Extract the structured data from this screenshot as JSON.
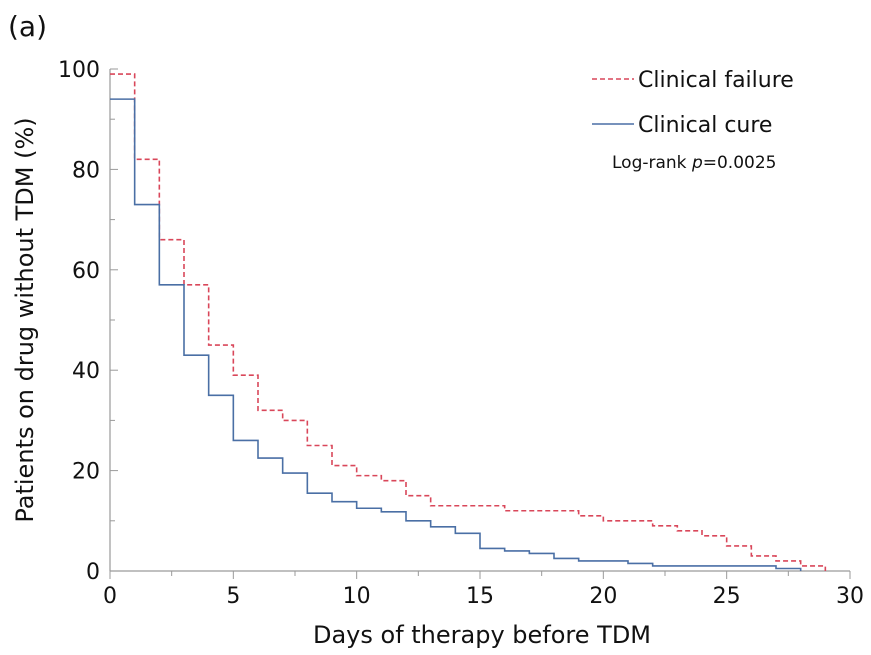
{
  "panel_label": "(a)",
  "chart_data": {
    "type": "line",
    "step": true,
    "xlabel": "Days of therapy before TDM",
    "ylabel": "Patients on drug without TDM (%)",
    "xlim": [
      0,
      30
    ],
    "ylim": [
      0,
      100
    ],
    "x_ticks": [
      0,
      5,
      10,
      15,
      20,
      25,
      30
    ],
    "y_ticks": [
      0,
      20,
      40,
      60,
      80,
      100
    ],
    "grid": false,
    "legend_position": "top-right",
    "annotation": {
      "prefix": "Log-rank ",
      "p_symbol": "p",
      "suffix": "=0.0025"
    },
    "series": [
      {
        "name": "Clinical failure",
        "color": "#d9475a",
        "line_style": "dashed",
        "x": [
          0,
          1,
          2,
          3,
          4,
          5,
          6,
          7,
          8,
          9,
          10,
          11,
          12,
          13,
          14,
          15,
          16,
          17,
          18,
          19,
          20,
          21,
          22,
          23,
          24,
          25,
          26,
          27,
          28,
          29
        ],
        "y": [
          99,
          82,
          66,
          57,
          45,
          39,
          32,
          30,
          25,
          21,
          19,
          18,
          15,
          13,
          13,
          13,
          12,
          12,
          12,
          11,
          10,
          10,
          9,
          8,
          7,
          5,
          3,
          2,
          1,
          0
        ]
      },
      {
        "name": "Clinical cure",
        "color": "#4a6fa5",
        "line_style": "solid",
        "x": [
          0,
          1,
          2,
          3,
          4,
          5,
          6,
          7,
          8,
          9,
          10,
          11,
          12,
          13,
          14,
          15,
          16,
          17,
          18,
          19,
          20,
          21,
          22,
          23,
          24,
          25,
          26,
          27,
          28
        ],
        "y": [
          94,
          73,
          57,
          43,
          35,
          26,
          22.5,
          19.5,
          15.5,
          13.8,
          12.5,
          11.8,
          10,
          8.8,
          7.5,
          4.5,
          4,
          3.5,
          2.5,
          2,
          2,
          1.5,
          1,
          1,
          1,
          1,
          1,
          0.5,
          0
        ]
      }
    ]
  }
}
